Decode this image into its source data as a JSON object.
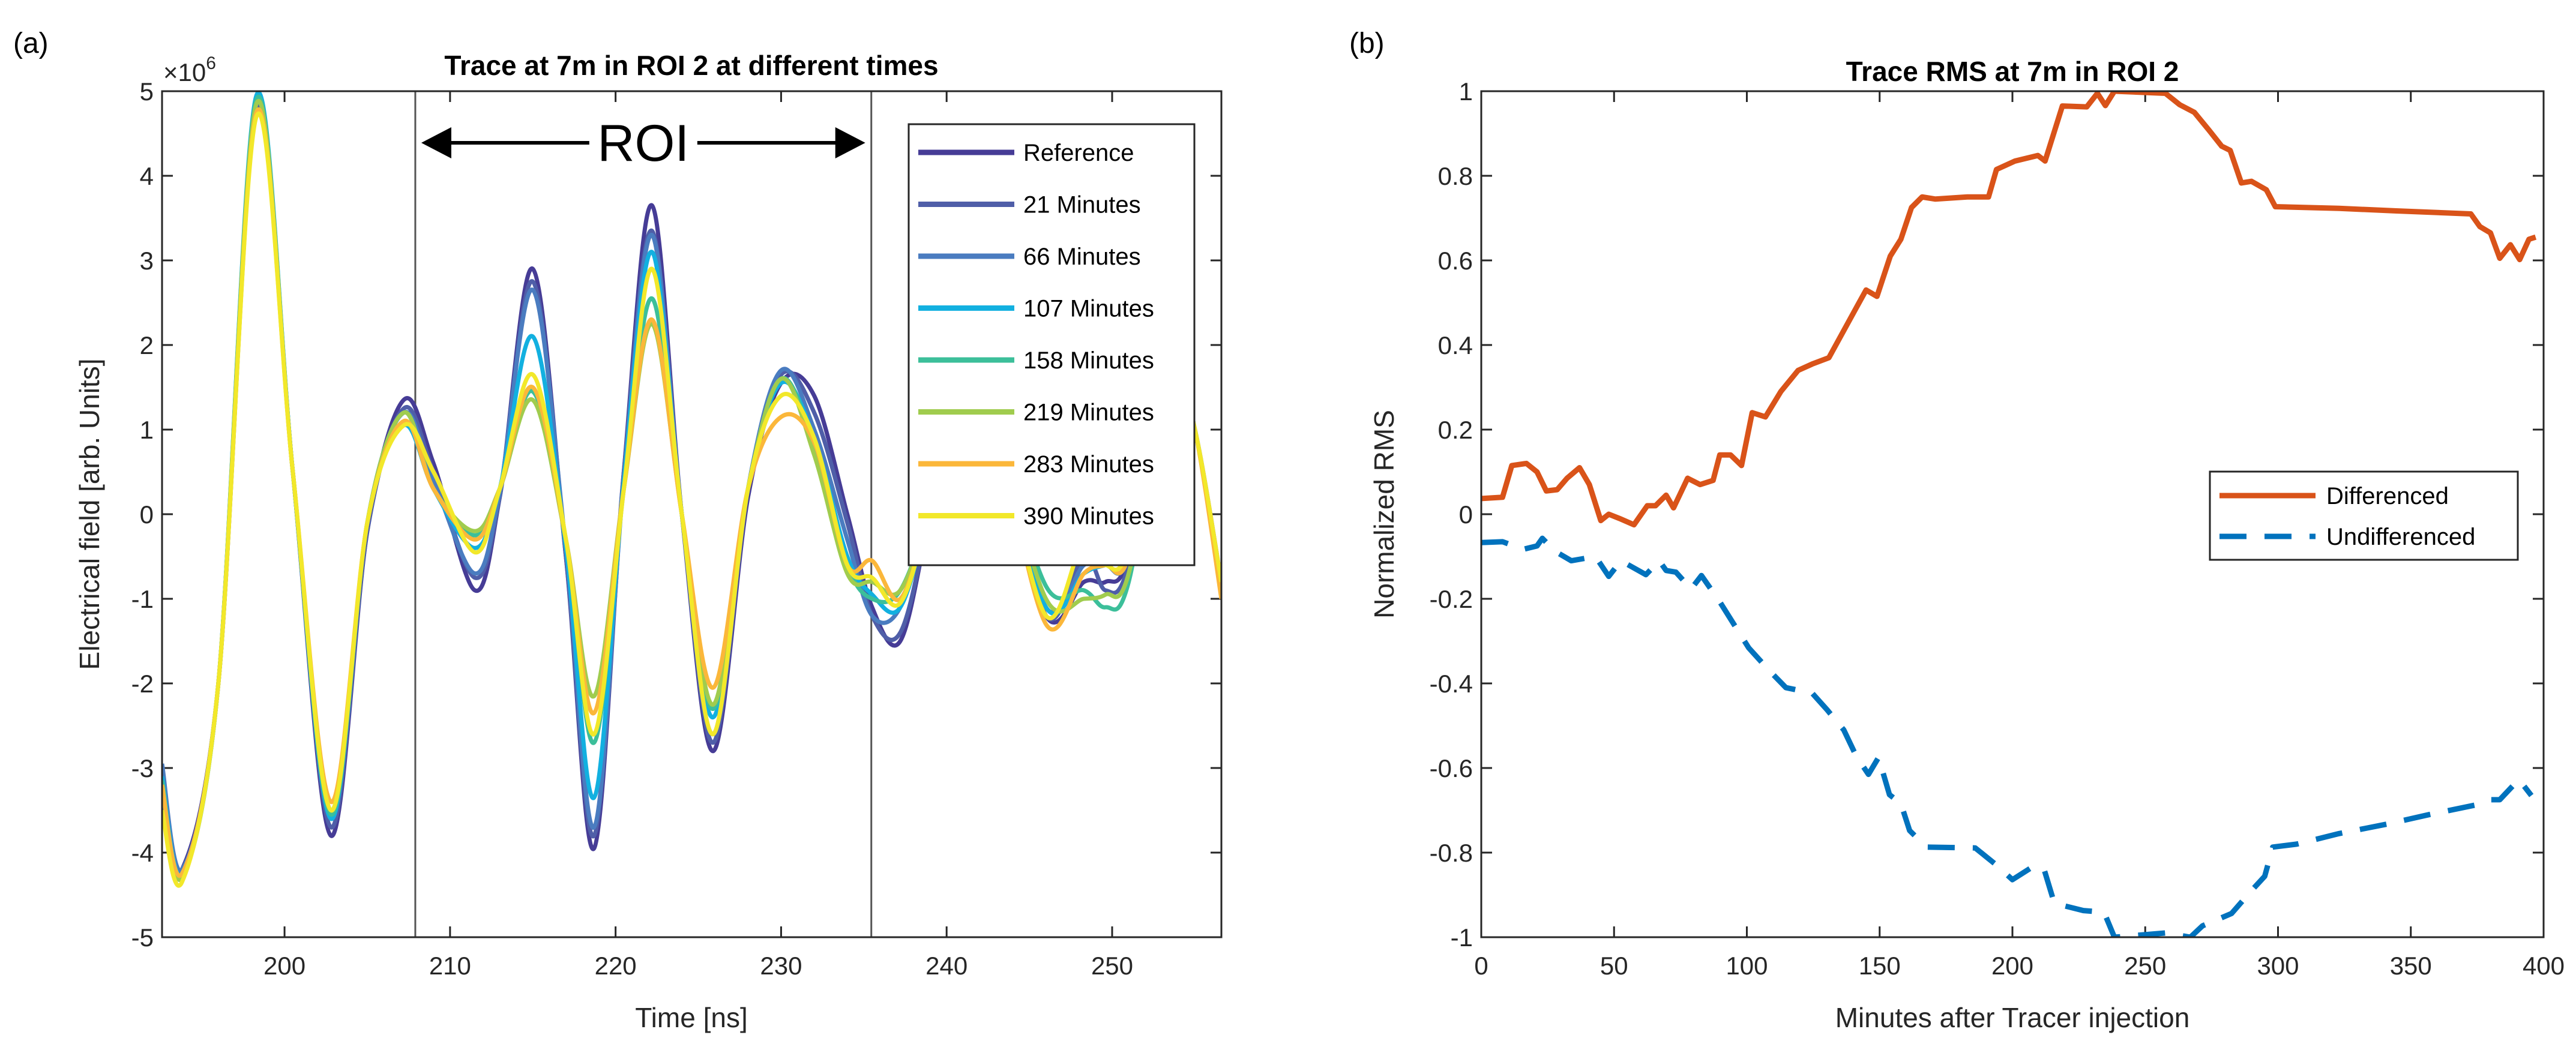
{
  "chart_data": [
    {
      "type": "line",
      "panel_label": "(a)",
      "title": "Trace at 7m in ROI 2 at different times",
      "xlabel": "Time [ns]",
      "ylabel": "Electrical field [arb. Units]",
      "y_multiplier_label": "×10",
      "y_multiplier_exp": "6",
      "xlim": [
        192.6,
        256.6
      ],
      "ylim": [
        -5,
        5
      ],
      "xticks": [
        200,
        210,
        220,
        230,
        240,
        250
      ],
      "yticks": [
        -5,
        -4,
        -3,
        -2,
        -1,
        0,
        1,
        2,
        3,
        4,
        5
      ],
      "legend_position": "top-right",
      "annotation": {
        "text": "ROI",
        "from": 207.9,
        "to": 235.45,
        "y": 4.39
      },
      "roi_lines": [
        207.9,
        235.45
      ],
      "x": [
        192.6,
        193.8,
        196,
        198.3,
        200.5,
        202.8,
        205,
        207.2,
        209,
        211.5,
        213,
        215,
        217,
        218.7,
        220.5,
        222.2,
        224,
        225.9,
        228,
        230,
        232,
        234,
        235.5,
        237.2,
        239,
        241.2,
        243,
        246,
        248.3,
        249.6,
        251,
        253.5,
        255,
        256.6
      ],
      "series": [
        {
          "name": "Reference",
          "color": "#463c96",
          "values": [
            -3.4,
            -4.2,
            -2.0,
            4.75,
            0.5,
            -3.8,
            -0.2,
            1.35,
            0.6,
            -0.9,
            0.2,
            2.9,
            -0.5,
            -3.95,
            0.5,
            3.65,
            0.0,
            -2.8,
            0.2,
            1.55,
            1.4,
            0.0,
            -1.1,
            -1.5,
            0.0,
            2.0,
            1.0,
            -1.2,
            -0.8,
            -0.8,
            -0.5,
            1.8,
            1.0,
            -0.8
          ]
        },
        {
          "name": "21 Minutes",
          "color": "#4f5ea8",
          "values": [
            -3.3,
            -4.25,
            -2.0,
            4.8,
            0.5,
            -3.7,
            -0.2,
            1.25,
            0.5,
            -0.75,
            0.2,
            2.75,
            -0.5,
            -3.8,
            0.5,
            3.35,
            0.0,
            -2.7,
            0.3,
            1.65,
            1.2,
            -0.1,
            -1.2,
            -1.4,
            0.0,
            2.0,
            1.0,
            -1.2,
            -0.5,
            -0.9,
            -0.6,
            1.8,
            1.0,
            -0.85
          ]
        },
        {
          "name": "66 Minutes",
          "color": "#4a7cc0",
          "values": [
            -2.95,
            -4.2,
            -2.0,
            4.9,
            0.5,
            -3.6,
            -0.1,
            1.2,
            0.4,
            -0.7,
            0.25,
            2.65,
            -0.4,
            -3.7,
            0.4,
            3.3,
            0.0,
            -2.6,
            0.3,
            1.7,
            1.0,
            -0.3,
            -1.2,
            -1.1,
            0.1,
            2.0,
            1.0,
            -1.1,
            -0.6,
            -0.6,
            -0.5,
            1.8,
            1.0,
            -0.9
          ]
        },
        {
          "name": "107 Minutes",
          "color": "#12b0e0",
          "values": [
            -3.1,
            -4.25,
            -2.0,
            4.95,
            0.5,
            -3.6,
            -0.1,
            1.05,
            0.3,
            -0.4,
            0.3,
            2.1,
            -0.4,
            -3.35,
            0.4,
            3.1,
            0.0,
            -2.4,
            0.3,
            1.55,
            0.9,
            -0.5,
            -0.95,
            -1.1,
            0.1,
            2.0,
            1.0,
            -1.1,
            -0.7,
            -0.6,
            -0.5,
            1.8,
            1.0,
            -0.9
          ]
        },
        {
          "name": "158 Minutes",
          "color": "#3cbf9a",
          "values": [
            -3.15,
            -4.3,
            -2.0,
            4.9,
            0.5,
            -3.55,
            -0.1,
            1.2,
            0.3,
            -0.25,
            0.3,
            1.45,
            -0.3,
            -2.7,
            0.3,
            2.55,
            0.0,
            -2.3,
            0.3,
            1.6,
            0.8,
            -0.6,
            -1.0,
            -0.9,
            0.1,
            2.0,
            1.0,
            -0.85,
            -0.9,
            -1.1,
            -0.8,
            1.8,
            1.0,
            -0.95
          ]
        },
        {
          "name": "219 Minutes",
          "color": "#a0cc4e",
          "values": [
            -3.2,
            -4.3,
            -2.0,
            4.85,
            0.5,
            -3.5,
            -0.1,
            1.2,
            0.3,
            -0.2,
            0.3,
            1.35,
            -0.3,
            -2.15,
            0.3,
            2.25,
            0.0,
            -2.25,
            0.3,
            1.6,
            0.7,
            -0.7,
            -0.8,
            -0.9,
            0.1,
            2.0,
            1.0,
            -1.0,
            -1.0,
            -0.95,
            -0.7,
            1.8,
            1.0,
            -0.85
          ]
        },
        {
          "name": "283 Minutes",
          "color": "#fbb73a",
          "values": [
            -3.2,
            -4.25,
            -2.0,
            4.75,
            0.5,
            -3.4,
            -0.1,
            1.1,
            0.3,
            -0.3,
            0.3,
            1.5,
            -0.3,
            -2.35,
            0.3,
            2.3,
            0.0,
            -2.05,
            0.3,
            1.15,
            0.85,
            -0.6,
            -0.55,
            -1.0,
            0.1,
            2.0,
            1.0,
            -1.3,
            -0.7,
            -0.6,
            -0.5,
            1.8,
            1.0,
            -1.0
          ]
        },
        {
          "name": "390 Minutes",
          "color": "#f2e82a",
          "values": [
            -3.5,
            -4.35,
            -2.0,
            4.7,
            0.5,
            -3.5,
            -0.1,
            1.05,
            0.5,
            -0.45,
            0.3,
            1.65,
            -0.3,
            -2.6,
            0.3,
            2.9,
            0.0,
            -2.6,
            0.3,
            1.4,
            0.9,
            -0.6,
            -0.75,
            -1.05,
            0.1,
            2.0,
            1.0,
            -1.2,
            -0.3,
            -0.6,
            -0.4,
            1.8,
            1.0,
            -0.8
          ]
        }
      ]
    },
    {
      "type": "line",
      "panel_label": "(b)",
      "title": "Trace RMS at 7m in ROI 2",
      "xlabel": "Minutes after Tracer injection",
      "ylabel": "Normalized RMS",
      "xlim": [
        0,
        400
      ],
      "ylim": [
        -1,
        1
      ],
      "xticks": [
        0,
        50,
        100,
        150,
        200,
        250,
        300,
        350,
        400
      ],
      "yticks": [
        -1,
        -0.8,
        -0.6,
        -0.4,
        -0.2,
        0,
        0.2,
        0.4,
        0.6,
        0.8,
        1
      ],
      "legend_position": "right-center",
      "series": [
        {
          "name": "Differenced",
          "color": "#d95319",
          "style": "solid",
          "x": [
            0,
            8,
            11.5,
            17,
            21,
            24.5,
            28.6,
            32.3,
            37,
            40.7,
            45,
            48,
            52,
            57.5,
            62.5,
            65.6,
            69.6,
            72.4,
            77.7,
            82.4,
            87.3,
            89.8,
            93.9,
            98,
            102,
            107,
            112.8,
            119.3,
            124.6,
            130.9,
            140.5,
            144.9,
            149,
            154,
            158,
            162,
            166,
            171,
            183,
            191,
            194,
            201,
            209.6,
            212.3,
            218.8,
            228,
            232,
            235,
            238.4,
            257.6,
            263,
            268.5,
            274,
            278.8,
            282,
            286.2,
            290,
            295.6,
            299,
            323,
            344.6,
            372.6,
            376,
            380,
            383.5,
            387.5,
            391,
            394.5,
            397
          ],
          "values": [
            0.037,
            0.04,
            0.115,
            0.12,
            0.1,
            0.055,
            0.058,
            0.085,
            0.11,
            0.07,
            -0.015,
            0,
            -0.01,
            -0.025,
            0.02,
            0.02,
            0.045,
            0.015,
            0.085,
            0.07,
            0.08,
            0.14,
            0.14,
            0.115,
            0.24,
            0.23,
            0.29,
            0.34,
            0.355,
            0.37,
            0.48,
            0.53,
            0.515,
            0.61,
            0.65,
            0.725,
            0.75,
            0.745,
            0.75,
            0.75,
            0.815,
            0.835,
            0.848,
            0.835,
            0.965,
            0.963,
            0.995,
            0.966,
            1.0,
            0.995,
            0.968,
            0.95,
            0.908,
            0.87,
            0.86,
            0.783,
            0.787,
            0.767,
            0.727,
            0.723,
            0.717,
            0.71,
            0.68,
            0.665,
            0.605,
            0.637,
            0.602,
            0.65,
            0.655
          ]
        },
        {
          "name": "Undifferenced",
          "color": "#0072bd",
          "style": "dashed",
          "x": [
            0,
            8,
            15.8,
            21,
            23,
            27.6,
            33.9,
            43,
            48,
            52.6,
            62,
            67,
            69.6,
            73.3,
            79,
            82.9,
            89.8,
            100.7,
            108.5,
            114.7,
            124.6,
            130.3,
            136.5,
            141.2,
            145.8,
            149.6,
            153.7,
            158,
            161.3,
            167.6,
            186,
            193.9,
            200,
            208,
            211.8,
            215.8,
            226.7,
            234.5,
            238.4,
            257.6,
            267,
            271.6,
            282.5,
            290,
            295,
            298,
            307,
            323,
            341.5,
            357,
            374,
            379,
            383.5,
            390.7,
            395.4
          ],
          "values": [
            -0.067,
            -0.065,
            -0.083,
            -0.075,
            -0.057,
            -0.087,
            -0.11,
            -0.1,
            -0.147,
            -0.11,
            -0.143,
            -0.11,
            -0.133,
            -0.137,
            -0.177,
            -0.145,
            -0.207,
            -0.316,
            -0.37,
            -0.41,
            -0.423,
            -0.463,
            -0.51,
            -0.572,
            -0.615,
            -0.575,
            -0.663,
            -0.684,
            -0.748,
            -0.787,
            -0.789,
            -0.829,
            -0.864,
            -0.832,
            -0.837,
            -0.92,
            -0.937,
            -0.941,
            -1.0,
            -0.99,
            -1.0,
            -0.973,
            -0.944,
            -0.89,
            -0.856,
            -0.787,
            -0.78,
            -0.755,
            -0.732,
            -0.71,
            -0.688,
            -0.675,
            -0.675,
            -0.627,
            -0.665
          ]
        }
      ]
    }
  ]
}
